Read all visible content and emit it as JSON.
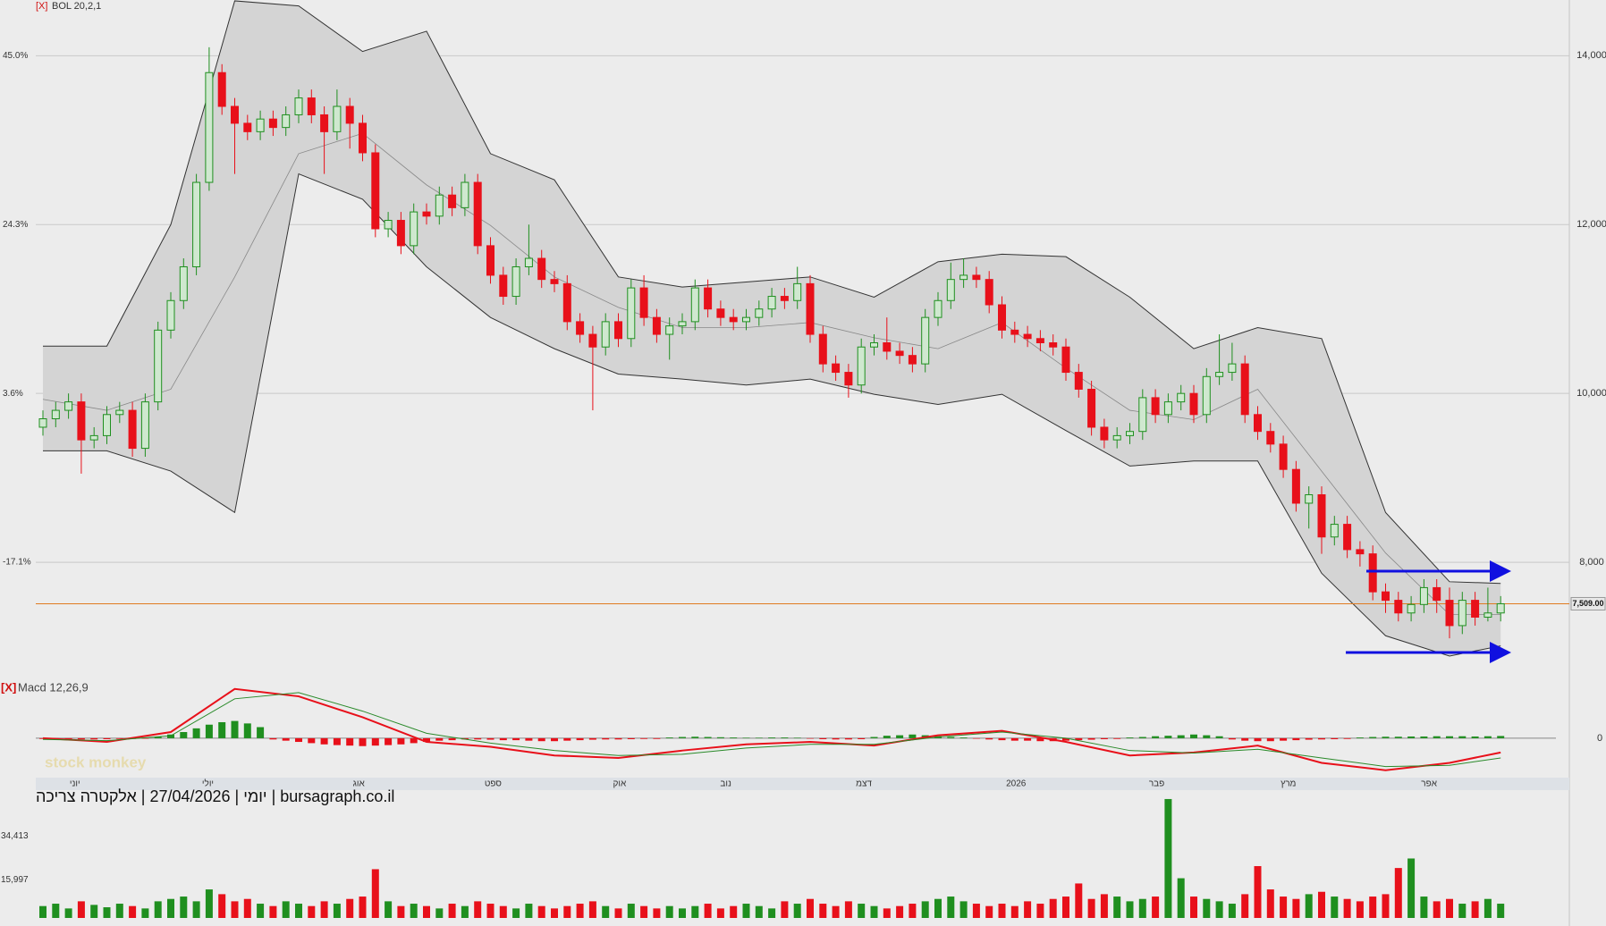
{
  "chart_data": [
    {
      "type": "candlestick",
      "tag": "[X]",
      "indicator": "BOL 20,2,1",
      "open": [
        9600,
        9700,
        9800,
        9900,
        9450,
        9500,
        9750,
        9800,
        9350,
        9900,
        10750,
        11100,
        11500,
        12500,
        13800,
        13400,
        13200,
        13100,
        13250,
        13150,
        13300,
        13500,
        13300,
        13100,
        13400,
        13200,
        12850,
        11950,
        12050,
        11750,
        12150,
        12100,
        12350,
        12200,
        12500,
        11750,
        11400,
        11150,
        11500,
        11600,
        11350,
        11300,
        10850,
        10700,
        10550,
        10850,
        10650,
        11250,
        10900,
        10700,
        10800,
        10850,
        11250,
        11000,
        10900,
        10850,
        10900,
        11000,
        11150,
        11100,
        11300,
        10700,
        10350,
        10250,
        10100,
        10550,
        10600,
        10500,
        10450,
        10350,
        10900,
        11100,
        11350,
        11400,
        11350,
        11050,
        10750,
        10700,
        10650,
        10600,
        10550,
        10250,
        10050,
        9600,
        9450,
        9500,
        9550,
        9950,
        9750,
        9900,
        10000,
        9750,
        10200,
        10250,
        10350,
        9750,
        9550,
        9400,
        9100,
        8700,
        8800,
        8300,
        8450,
        8150,
        8100,
        7650,
        7550,
        7400,
        7500,
        7700,
        7550,
        7250,
        7550,
        7350,
        7400
      ],
      "high": [
        9800,
        9900,
        10000,
        10000,
        9600,
        9850,
        9900,
        9900,
        10000,
        10850,
        11200,
        11600,
        12600,
        14100,
        13900,
        13500,
        13300,
        13350,
        13350,
        13400,
        13600,
        13600,
        13400,
        13600,
        13500,
        13300,
        12950,
        12150,
        12150,
        12250,
        12250,
        12450,
        12450,
        12600,
        12600,
        11850,
        11500,
        11600,
        12000,
        11700,
        11450,
        11400,
        10950,
        10800,
        10950,
        10950,
        11350,
        11400,
        11000,
        10900,
        10950,
        11350,
        11350,
        11100,
        11000,
        11000,
        11100,
        11250,
        11250,
        11500,
        11400,
        10800,
        10450,
        10350,
        10650,
        10700,
        10900,
        10600,
        10550,
        11000,
        11200,
        11550,
        11600,
        11500,
        11450,
        11150,
        10850,
        10800,
        10750,
        10700,
        10650,
        10350,
        10150,
        9700,
        9600,
        9650,
        10050,
        10050,
        10000,
        10100,
        10100,
        10300,
        10700,
        10600,
        10450,
        9850,
        9650,
        9500,
        9200,
        8900,
        8900,
        8550,
        8550,
        8250,
        8200,
        7750,
        7650,
        7600,
        7800,
        7800,
        7700,
        7650,
        7650,
        7700,
        7600
      ],
      "low": [
        9500,
        9600,
        9700,
        9050,
        9350,
        9400,
        9650,
        9250,
        9250,
        9800,
        10650,
        11000,
        11400,
        12400,
        13300,
        12600,
        13000,
        13000,
        13050,
        13050,
        13200,
        13200,
        12600,
        13000,
        12900,
        12750,
        11850,
        11850,
        11650,
        11650,
        12000,
        12000,
        12100,
        12100,
        11650,
        11300,
        11050,
        11050,
        11400,
        11250,
        11200,
        10750,
        10600,
        9800,
        10450,
        10550,
        10550,
        10800,
        10600,
        10400,
        10700,
        10750,
        10900,
        10800,
        10750,
        10750,
        10800,
        10900,
        11000,
        11000,
        10600,
        10250,
        10150,
        9950,
        10000,
        10450,
        10400,
        10350,
        10250,
        10250,
        10800,
        11000,
        11250,
        11250,
        10950,
        10650,
        10600,
        10550,
        10500,
        10450,
        10150,
        9950,
        9500,
        9350,
        9350,
        9400,
        9450,
        9650,
        9650,
        9800,
        9650,
        9650,
        10100,
        10150,
        9650,
        9450,
        9300,
        9000,
        8600,
        8400,
        8100,
        8200,
        8050,
        7950,
        7550,
        7400,
        7300,
        7300,
        7400,
        7400,
        7100,
        7150,
        7250,
        7300,
        7300
      ],
      "close": [
        9700,
        9800,
        9900,
        9450,
        9500,
        9750,
        9800,
        9350,
        9900,
        10750,
        11100,
        11500,
        12500,
        13800,
        13400,
        13200,
        13100,
        13250,
        13150,
        13300,
        13500,
        13300,
        13100,
        13400,
        13200,
        12850,
        11950,
        12050,
        11750,
        12150,
        12100,
        12350,
        12200,
        12500,
        11750,
        11400,
        11150,
        11500,
        11600,
        11350,
        11300,
        10850,
        10700,
        10550,
        10850,
        10650,
        11250,
        10900,
        10700,
        10800,
        10850,
        11250,
        11000,
        10900,
        10850,
        10900,
        11000,
        11150,
        11100,
        11300,
        10700,
        10350,
        10250,
        10100,
        10550,
        10600,
        10500,
        10450,
        10350,
        10900,
        11100,
        11350,
        11400,
        11350,
        11050,
        10750,
        10700,
        10650,
        10600,
        10550,
        10250,
        10050,
        9600,
        9450,
        9500,
        9550,
        9950,
        9750,
        9900,
        10000,
        9750,
        10200,
        10250,
        10350,
        9750,
        9550,
        9400,
        9100,
        8700,
        8800,
        8300,
        8450,
        8150,
        8100,
        7650,
        7550,
        7400,
        7500,
        7700,
        7550,
        7250,
        7550,
        7350,
        7400,
        7509
      ],
      "up_color": "#1f8f1f",
      "up_fill": "#cfe8cf",
      "down_color": "#e8101a",
      "bands": {
        "color": "#d4d4d4",
        "x": [
          0,
          5,
          10,
          15,
          20,
          25,
          30,
          35,
          40,
          45,
          50,
          55,
          60,
          65,
          70,
          75,
          80,
          85,
          90,
          95,
          100,
          105,
          110,
          114
        ],
        "upper": [
          10560,
          10560,
          12000,
          14650,
          14590,
          14050,
          14290,
          12840,
          12530,
          11380,
          11260,
          11320,
          11380,
          11140,
          11560,
          11650,
          11620,
          11140,
          10530,
          10780,
          10650,
          8590,
          7770,
          7750
        ],
        "middle": [
          9930,
          9800,
          10050,
          11380,
          12840,
          13080,
          12470,
          11990,
          11380,
          11020,
          10780,
          10780,
          10840,
          10660,
          10530,
          10840,
          10300,
          9800,
          9690,
          10050,
          9080,
          8110,
          7380,
          7380
        ],
        "lower": [
          9320,
          9320,
          9080,
          8590,
          12600,
          12300,
          11500,
          10900,
          10530,
          10230,
          10170,
          10100,
          10170,
          9990,
          9870,
          9990,
          9560,
          9140,
          9200,
          9200,
          7870,
          7130,
          6890,
          7010
        ]
      },
      "ylim": [
        6720,
        14660
      ],
      "yticks": [
        {
          "value": 8000,
          "label": "8,000"
        },
        {
          "value": 10000,
          "label": "10,000"
        },
        {
          "value": 12000,
          "label": "12,000"
        },
        {
          "value": 14000,
          "label": "14,000"
        }
      ],
      "y2lim": [
        -30.35,
        51.83
      ],
      "y2ticks": [
        {
          "value": -17.1,
          "label": "-17.1%"
        },
        {
          "value": 3.6,
          "label": "3.6%"
        },
        {
          "value": 24.3,
          "label": "24.3%"
        },
        {
          "value": 45.0,
          "label": "45.0%"
        }
      ],
      "last_price": {
        "value": 7509,
        "label": "7,509.00",
        "color": "#e07b20"
      },
      "grid": true
    },
    {
      "type": "macd",
      "tag": "[X]",
      "indicator": "Macd 12,26,9",
      "watermark": "stock monkey",
      "x": [
        0,
        5,
        10,
        15,
        20,
        25,
        30,
        35,
        40,
        45,
        50,
        55,
        60,
        65,
        70,
        75,
        80,
        85,
        90,
        95,
        100,
        105,
        110,
        114
      ],
      "series": [
        {
          "color": "#e8101a",
          "values": [
            0,
            -15,
            25,
            200,
            170,
            85,
            -15,
            -35,
            -70,
            -80,
            -50,
            -25,
            -15,
            -30,
            12,
            30,
            -15,
            -70,
            -58,
            -30,
            -100,
            -130,
            -100,
            -58
          ]
        },
        {
          "color": "#2a8a2a",
          "values": [
            -5,
            -10,
            10,
            160,
            185,
            110,
            20,
            -20,
            -50,
            -70,
            -65,
            -40,
            -25,
            -25,
            5,
            25,
            0,
            -50,
            -60,
            -45,
            -80,
            -115,
            -110,
            -80
          ]
        }
      ],
      "histogram": [
        -3,
        -4,
        -4,
        -5,
        -5,
        -4,
        -3,
        -3,
        -2,
        5,
        15,
        25,
        40,
        55,
        65,
        70,
        60,
        45,
        -5,
        -10,
        -15,
        -20,
        -25,
        -28,
        -30,
        -32,
        -30,
        -28,
        -25,
        -20,
        -15,
        -10,
        -8,
        -5,
        -5,
        -6,
        -8,
        -8,
        -10,
        -12,
        -12,
        -10,
        -8,
        -6,
        -5,
        -5,
        -4,
        -3,
        -3,
        3,
        5,
        6,
        5,
        4,
        3,
        2,
        2,
        3,
        3,
        2,
        -2,
        -4,
        -5,
        -5,
        -4,
        5,
        10,
        12,
        15,
        12,
        8,
        5,
        3,
        -2,
        -5,
        -8,
        -10,
        -10,
        -12,
        -12,
        -10,
        -8,
        -6,
        -4,
        -3,
        3,
        5,
        8,
        10,
        12,
        15,
        12,
        8,
        -5,
        -10,
        -12,
        -12,
        -10,
        -8,
        -6,
        -5,
        -4,
        -3,
        3,
        5,
        6,
        6,
        7,
        7,
        8,
        8,
        8,
        7,
        8,
        9
      ],
      "positive_color": "#1f8f1f",
      "negative_color": "#e8101a",
      "ylim": [
        -160,
        250
      ],
      "yticks": [
        0
      ],
      "xticks": [
        {
          "value": 2.5,
          "label": "יוני"
        },
        {
          "value": 12.9,
          "label": "יולי"
        },
        {
          "value": 24.7,
          "label": "אוג"
        },
        {
          "value": 35.2,
          "label": "ספט"
        },
        {
          "value": 45.1,
          "label": "אוק"
        },
        {
          "value": 53.4,
          "label": "נוב"
        },
        {
          "value": 64.2,
          "label": "דצמ"
        },
        {
          "value": 76.1,
          "label": "2026"
        },
        {
          "value": 87.1,
          "label": "פבר"
        },
        {
          "value": 97.4,
          "label": "מרץ"
        },
        {
          "value": 108.4,
          "label": "אפר"
        }
      ]
    },
    {
      "type": "volume",
      "caption": "יומי | 27/04/2026 | אלקטרה צריכה | bursagraph.co.il",
      "values": [
        5000,
        6000,
        4000,
        7000,
        5500,
        4500,
        6000,
        5000,
        4000,
        7000,
        8000,
        9000,
        7000,
        12000,
        10000,
        7000,
        8000,
        6000,
        5000,
        7000,
        6000,
        5000,
        7000,
        6000,
        8000,
        9000,
        20500,
        7000,
        5000,
        6000,
        5000,
        4000,
        6000,
        5000,
        7000,
        6000,
        5000,
        4000,
        6000,
        5000,
        4000,
        5000,
        6000,
        7000,
        5000,
        4000,
        6000,
        5000,
        4000,
        5000,
        4000,
        5000,
        6000,
        4000,
        5000,
        6000,
        5000,
        4000,
        7000,
        6000,
        8000,
        6000,
        5000,
        7000,
        6000,
        5000,
        4000,
        5000,
        6000,
        7000,
        8000,
        9000,
        7000,
        6000,
        5000,
        6000,
        5000,
        7000,
        6000,
        8000,
        9000,
        14500,
        8000,
        10000,
        9000,
        7000,
        8000,
        9000,
        50000,
        16700,
        9000,
        8000,
        7000,
        6000,
        10000,
        21800,
        12000,
        9000,
        8000,
        10000,
        11000,
        9000,
        8000,
        7000,
        9000,
        10000,
        21000,
        25000,
        9000,
        7000,
        8000,
        6000,
        7000,
        8000,
        6000
      ],
      "ylim": [
        0,
        50360
      ],
      "yticks": [
        {
          "value": 15997,
          "label": "15,997"
        },
        {
          "value": 34413,
          "label": "34,413"
        }
      ]
    }
  ]
}
